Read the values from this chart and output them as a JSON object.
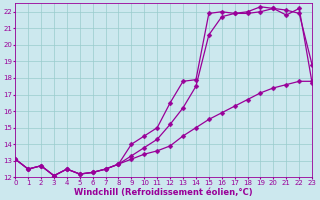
{
  "xlabel": "Windchill (Refroidissement éolien,°C)",
  "ylabel": "",
  "bg_color": "#cce8ee",
  "line_color": "#990099",
  "grid_color": "#99cccc",
  "xlim": [
    0,
    23
  ],
  "ylim": [
    12,
    22.5
  ],
  "xticks": [
    0,
    1,
    2,
    3,
    4,
    5,
    6,
    7,
    8,
    9,
    10,
    11,
    12,
    13,
    14,
    15,
    16,
    17,
    18,
    19,
    20,
    21,
    22,
    23
  ],
  "yticks": [
    12,
    13,
    14,
    15,
    16,
    17,
    18,
    19,
    20,
    21,
    22
  ],
  "curve1_x": [
    0,
    1,
    2,
    3,
    4,
    5,
    6,
    7,
    8,
    9,
    10,
    11,
    12,
    13,
    14,
    15,
    16,
    17,
    18,
    19,
    20,
    21,
    22,
    23
  ],
  "curve1_y": [
    13.1,
    12.5,
    12.7,
    12.1,
    12.5,
    12.2,
    12.3,
    12.5,
    12.8,
    13.1,
    13.4,
    13.6,
    13.9,
    14.5,
    15.0,
    15.5,
    15.9,
    16.3,
    16.7,
    17.1,
    17.4,
    17.6,
    17.8,
    17.8
  ],
  "curve2_x": [
    0,
    1,
    2,
    3,
    4,
    5,
    6,
    7,
    8,
    9,
    10,
    11,
    12,
    13,
    14,
    15,
    16,
    17,
    18,
    19,
    20,
    21,
    22,
    23
  ],
  "curve2_y": [
    13.1,
    12.5,
    12.7,
    12.1,
    12.5,
    12.2,
    12.3,
    12.5,
    12.8,
    13.3,
    13.8,
    14.3,
    15.2,
    16.2,
    17.5,
    20.6,
    21.7,
    21.9,
    21.9,
    22.0,
    22.2,
    22.1,
    21.9,
    18.8
  ],
  "curve3_x": [
    0,
    1,
    2,
    3,
    4,
    5,
    6,
    7,
    8,
    9,
    10,
    11,
    12,
    13,
    14,
    15,
    16,
    17,
    18,
    19,
    20,
    21,
    22,
    23
  ],
  "curve3_y": [
    13.1,
    12.5,
    12.7,
    12.1,
    12.5,
    12.2,
    12.3,
    12.5,
    12.8,
    14.0,
    14.5,
    15.0,
    16.5,
    17.8,
    17.9,
    21.9,
    22.0,
    21.9,
    22.0,
    22.3,
    22.2,
    21.8,
    22.2,
    17.7
  ],
  "marker": "D",
  "marker_size": 2.5,
  "linewidth": 0.9,
  "tick_fontsize": 5.0,
  "xlabel_fontsize": 6.0
}
